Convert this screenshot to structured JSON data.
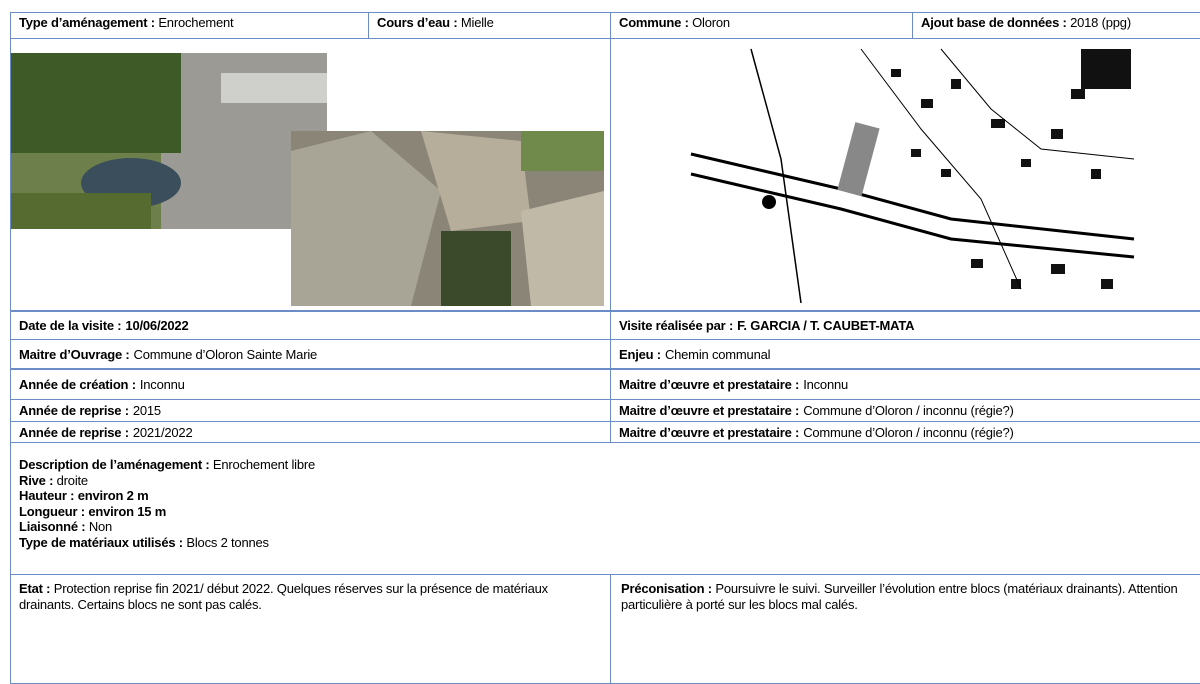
{
  "header": {
    "type": {
      "label": "Type d’aménagement :",
      "value": "Enrochement"
    },
    "river": {
      "label": "Cours d’eau :",
      "value": "Mielle"
    },
    "commune": {
      "label": "Commune :",
      "value": "Oloron"
    },
    "added": {
      "label": "Ajout base de données :",
      "value": "2018 (ppg)"
    }
  },
  "rows": [
    [
      {
        "label": "Date de la visite :",
        "value": "10/06/2022"
      },
      {
        "label": "Visite réalisée par :",
        "value": "F. GARCIA / T. CAUBET-MATA"
      }
    ],
    [
      {
        "label": "Maitre d’Ouvrage :",
        "value": "Commune d’Oloron Sainte Marie"
      },
      {
        "label": "Enjeu :",
        "value": "Chemin communal"
      }
    ],
    [
      {
        "label": "Année de création :",
        "value": "Inconnu"
      },
      {
        "label": "Maitre d’œuvre et prestataire :",
        "value": "Inconnu"
      }
    ],
    [
      {
        "label": "Année de reprise :",
        "value": "2015"
      },
      {
        "label": "Maitre d’œuvre et prestataire :",
        "value": "Commune d’Oloron / inconnu (régie?)"
      }
    ],
    [
      {
        "label": "Année de reprise :",
        "value": "2021/2022"
      },
      {
        "label": "Maitre d’œuvre et prestataire :",
        "value": "Commune d’Oloron / inconnu (régie?)"
      }
    ]
  ],
  "description": [
    {
      "label": "Description de l’aménagement :",
      "value": "Enrochement libre"
    },
    {
      "label": "Rive :",
      "value": "droite"
    },
    {
      "label": "Hauteur :",
      "value": "environ 2 m"
    },
    {
      "label": "Longueur :",
      "value": "environ 15 m"
    },
    {
      "label": "Liaisonné :",
      "value": "Non"
    },
    {
      "label": "Type de matériaux utilisés :",
      "value": "Blocs 2 tonnes"
    }
  ],
  "state": {
    "label": "Etat :",
    "value": "Protection reprise fin 2021/ début 2022. Quelques réserves sur la présence de matériaux drainants. Certains blocs ne sont pas calés."
  },
  "recommendation": {
    "label": "Préconisation :",
    "value": "Poursuivre le suivi. Surveiller l’évolution entre blocs (matériaux drainants). Attention particulière à porté sur les blocs mal calés."
  }
}
